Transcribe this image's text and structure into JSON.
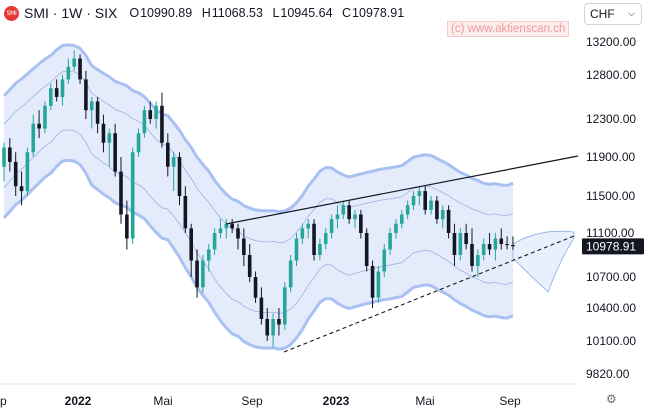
{
  "header": {
    "symbol": "SMI · 1W · SIX",
    "logo_text": "SMI",
    "open_label": "O",
    "open": "10990.89",
    "high_label": "H",
    "high": "11068.53",
    "low_label": "L",
    "low": "10945.64",
    "close_label": "C",
    "close": "10978.91"
  },
  "watermark": "(c) www.aktienscan.ch",
  "currency": {
    "label": "CHF",
    "icon": "chevron-down-icon"
  },
  "settings_icon": "gear-icon",
  "colors": {
    "up": "#26a69a",
    "down": "#131722",
    "band_fill": "#dbe6fb",
    "band_line": "#a9c0f2",
    "axis_text": "#131722",
    "price_badge": "#131722"
  },
  "chart_data": {
    "type": "candlestick",
    "last_price": "10978.91",
    "y_ticks": [
      "13200.00",
      "12800.00",
      "12300.00",
      "11900.00",
      "11500.00",
      "11100.00",
      "10700.00",
      "10400.00",
      "10100.00",
      "9820.00"
    ],
    "x_ticks": [
      "p",
      "2022",
      "Mai",
      "Sep",
      "2023",
      "Mai",
      "Sep"
    ],
    "x_ticks_bold": [
      false,
      true,
      false,
      false,
      true,
      false,
      false
    ],
    "weeks": 88,
    "candles": [
      [
        11800,
        12050,
        11650,
        12000
      ],
      [
        12000,
        12100,
        11750,
        11850
      ],
      [
        11850,
        11950,
        11500,
        11600
      ],
      [
        11600,
        11750,
        11400,
        11550
      ],
      [
        11550,
        12000,
        11500,
        11950
      ],
      [
        11950,
        12350,
        11900,
        12250
      ],
      [
        12250,
        12400,
        12100,
        12200
      ],
      [
        12200,
        12500,
        12150,
        12450
      ],
      [
        12450,
        12700,
        12400,
        12650
      ],
      [
        12650,
        12750,
        12500,
        12550
      ],
      [
        12550,
        12800,
        12450,
        12750
      ],
      [
        12750,
        13000,
        12700,
        12900
      ],
      [
        12900,
        13100,
        12850,
        13000
      ],
      [
        13000,
        13050,
        12700,
        12750
      ],
      [
        12750,
        12850,
        12300,
        12400
      ],
      [
        12400,
        12550,
        12200,
        12500
      ],
      [
        12500,
        12550,
        12150,
        12250
      ],
      [
        12250,
        12350,
        11950,
        12050
      ],
      [
        12050,
        12200,
        11800,
        12150
      ],
      [
        12150,
        12250,
        11700,
        11750
      ],
      [
        11750,
        11900,
        11200,
        11300
      ],
      [
        11300,
        11450,
        10950,
        11050
      ],
      [
        11050,
        12000,
        11000,
        11950
      ],
      [
        11950,
        12200,
        11900,
        12150
      ],
      [
        12150,
        12450,
        12100,
        12400
      ],
      [
        12400,
        12500,
        12250,
        12300
      ],
      [
        12300,
        12500,
        12200,
        12450
      ],
      [
        12450,
        12600,
        12000,
        12050
      ],
      [
        12050,
        12150,
        11700,
        11800
      ],
      [
        11800,
        11950,
        11550,
        11900
      ],
      [
        11900,
        11950,
        11400,
        11500
      ],
      [
        11500,
        11600,
        11100,
        11150
      ],
      [
        11150,
        11200,
        10700,
        10850
      ],
      [
        10850,
        10950,
        10500,
        10600
      ],
      [
        10600,
        10900,
        10550,
        10850
      ],
      [
        10850,
        11000,
        10750,
        10950
      ],
      [
        10950,
        11150,
        10900,
        11100
      ],
      [
        11100,
        11250,
        11050,
        11150
      ],
      [
        11150,
        11250,
        11050,
        11200
      ],
      [
        11200,
        11250,
        11100,
        11150
      ],
      [
        11150,
        11200,
        10950,
        11050
      ],
      [
        11050,
        11150,
        10800,
        10900
      ],
      [
        10900,
        11000,
        10650,
        10700
      ],
      [
        10700,
        10750,
        10450,
        10500
      ],
      [
        10500,
        10600,
        10250,
        10300
      ],
      [
        10300,
        10400,
        10100,
        10150
      ],
      [
        10150,
        10350,
        10050,
        10300
      ],
      [
        10300,
        10400,
        10150,
        10250
      ],
      [
        10250,
        10650,
        10200,
        10600
      ],
      [
        10600,
        10900,
        10550,
        10850
      ],
      [
        10850,
        11100,
        10800,
        11050
      ],
      [
        11050,
        11200,
        11000,
        11150
      ],
      [
        11150,
        11250,
        11050,
        11200
      ],
      [
        11200,
        11250,
        10850,
        10900
      ],
      [
        10900,
        11050,
        10850,
        11000
      ],
      [
        11000,
        11150,
        10950,
        11100
      ],
      [
        11100,
        11300,
        11050,
        11250
      ],
      [
        11250,
        11400,
        11150,
        11300
      ],
      [
        11300,
        11450,
        11250,
        11400
      ],
      [
        11400,
        11450,
        11200,
        11250
      ],
      [
        11250,
        11350,
        11150,
        11300
      ],
      [
        11300,
        11350,
        11050,
        11100
      ],
      [
        11100,
        11150,
        10750,
        10800
      ],
      [
        10800,
        10850,
        10400,
        10500
      ],
      [
        10500,
        10800,
        10450,
        10750
      ],
      [
        10750,
        11000,
        10700,
        10950
      ],
      [
        10950,
        11150,
        10900,
        11100
      ],
      [
        11100,
        11250,
        11050,
        11200
      ],
      [
        11200,
        11350,
        11150,
        11300
      ],
      [
        11300,
        11450,
        11250,
        11400
      ],
      [
        11400,
        11550,
        11350,
        11500
      ],
      [
        11500,
        11600,
        11400,
        11550
      ],
      [
        11550,
        11600,
        11300,
        11350
      ],
      [
        11350,
        11500,
        11300,
        11450
      ],
      [
        11450,
        11500,
        11200,
        11250
      ],
      [
        11250,
        11400,
        11150,
        11350
      ],
      [
        11350,
        11400,
        11050,
        11100
      ],
      [
        11100,
        11200,
        10800,
        10900
      ],
      [
        10900,
        11150,
        10850,
        11100
      ],
      [
        11100,
        11200,
        10950,
        11000
      ],
      [
        11000,
        11150,
        10750,
        10800
      ],
      [
        10800,
        10950,
        10700,
        10900
      ],
      [
        10900,
        11050,
        10850,
        11000
      ],
      [
        11000,
        11100,
        10900,
        10950
      ],
      [
        10950,
        11100,
        10850,
        11050
      ],
      [
        11050,
        11150,
        10950,
        11000
      ],
      [
        11000,
        11070,
        10950,
        10990
      ],
      [
        10991,
        11069,
        10946,
        10979
      ]
    ]
  }
}
